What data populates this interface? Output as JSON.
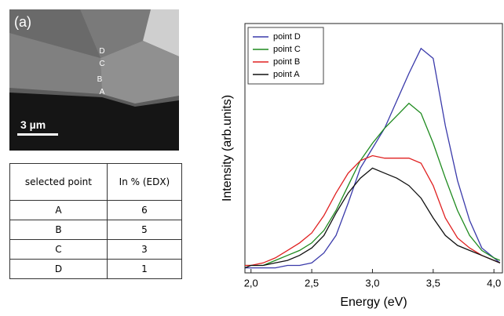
{
  "figure": {
    "panel_label": "(a)",
    "point_labels": [
      "D",
      "C",
      "B",
      "A"
    ],
    "scale_bar": "3 µm"
  },
  "table": {
    "header": [
      "selected point",
      "In % (EDX)"
    ],
    "rows": [
      [
        "A",
        6
      ],
      [
        "B",
        5
      ],
      [
        "C",
        3
      ],
      [
        "D",
        1
      ]
    ]
  },
  "chart_data": {
    "type": "line",
    "x_label": "Energy (eV)",
    "y_label": "Intensity (arb.units)",
    "x": [
      1.95,
      2.0,
      2.1,
      2.2,
      2.3,
      2.4,
      2.5,
      2.6,
      2.7,
      2.8,
      2.9,
      3.0,
      3.1,
      3.2,
      3.3,
      3.4,
      3.5,
      3.6,
      3.7,
      3.8,
      3.9,
      4.0,
      4.05
    ],
    "series": [
      {
        "name": "point D",
        "color": "#3a3aaa",
        "values": [
          2,
          2,
          2,
          2,
          3,
          3,
          4,
          8,
          15,
          28,
          42,
          50,
          58,
          69,
          80,
          90,
          86,
          59,
          37,
          21,
          10,
          6,
          4
        ]
      },
      {
        "name": "point C",
        "color": "#1e8a1e",
        "values": [
          3,
          3,
          3,
          5,
          7,
          9,
          12,
          17,
          25,
          35,
          45,
          52,
          58,
          63,
          68,
          64,
          52,
          38,
          25,
          15,
          9,
          6,
          5
        ]
      },
      {
        "name": "point B",
        "color": "#e02020",
        "values": [
          3,
          3,
          4,
          6,
          9,
          12,
          16,
          23,
          32,
          40,
          45,
          47,
          46,
          46,
          46,
          44,
          35,
          22,
          14,
          10,
          7,
          5,
          4
        ]
      },
      {
        "name": "point A",
        "color": "#111111",
        "values": [
          2,
          3,
          3,
          4,
          5,
          7,
          10,
          15,
          24,
          32,
          38,
          42,
          40,
          38,
          35,
          30,
          22,
          15,
          11,
          9,
          7,
          5,
          4
        ]
      }
    ],
    "xlim": [
      1.95,
      4.07
    ],
    "ylim": [
      0,
      100
    ],
    "xticks": [
      {
        "value": 2.0,
        "label": "2,0"
      },
      {
        "value": 2.5,
        "label": "2,5"
      },
      {
        "value": 3.0,
        "label": "3,0"
      },
      {
        "value": 3.5,
        "label": "3,5"
      },
      {
        "value": 4.0,
        "label": "4,0"
      }
    ],
    "legend": "upper left"
  }
}
